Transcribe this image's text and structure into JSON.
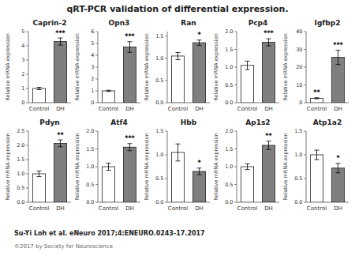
{
  "title": "qRT-PCR validation of differential expression.",
  "subtitle": "Su-Yi Loh et al. eNeuro 2017;4:ENEURO.0243-17.2017",
  "annotations": [
    "©2017 by Society for Neuroscience"
  ],
  "chart_data": [
    {
      "type": "bar",
      "title": "Caprin-2",
      "ylabel": "Relative mRNA expression",
      "categories": [
        "Control",
        "DH"
      ],
      "values": [
        1.0,
        4.3
      ],
      "errors": [
        0.08,
        0.25
      ],
      "colors": [
        "#ffffff",
        "#7f7f7f"
      ],
      "significance": [
        null,
        "***"
      ],
      "ylim": [
        0,
        5
      ],
      "yticks": [
        0,
        1,
        2,
        3,
        4,
        5
      ],
      "grid": false
    },
    {
      "type": "bar",
      "title": "Opn3",
      "ylabel": "Relative mRNA expression",
      "categories": [
        "Control",
        "DH"
      ],
      "values": [
        1.0,
        4.7
      ],
      "errors": [
        0.05,
        0.45
      ],
      "colors": [
        "#ffffff",
        "#7f7f7f"
      ],
      "significance": [
        null,
        "***"
      ],
      "ylim": [
        0,
        6
      ],
      "yticks": [
        0,
        1,
        2,
        3,
        4,
        5,
        6
      ],
      "grid": false
    },
    {
      "type": "bar",
      "title": "Ran",
      "ylabel": "Relative mRNA expression",
      "categories": [
        "Control",
        "DH"
      ],
      "values": [
        1.05,
        1.35
      ],
      "errors": [
        0.08,
        0.06
      ],
      "colors": [
        "#ffffff",
        "#7f7f7f"
      ],
      "significance": [
        null,
        "*"
      ],
      "ylim": [
        0.0,
        1.6
      ],
      "yticks": [
        {
          "value": 0.0,
          "label": "0.0"
        },
        0.5,
        {
          "value": 1.0,
          "label": "1.0"
        },
        1.5
      ],
      "grid": false
    },
    {
      "type": "bar",
      "title": "Pcp4",
      "ylabel": "Relative mRNA expression",
      "categories": [
        "Control",
        "DH"
      ],
      "values": [
        1.05,
        1.7
      ],
      "errors": [
        0.12,
        0.1
      ],
      "colors": [
        "#ffffff",
        "#7f7f7f"
      ],
      "significance": [
        null,
        "***"
      ],
      "ylim": [
        0.0,
        2.0
      ],
      "yticks": [
        {
          "value": 0.0,
          "label": "0.0"
        },
        0.5,
        {
          "value": 1.0,
          "label": "1.0"
        },
        1.5,
        {
          "value": 2.0,
          "label": "2.0"
        }
      ],
      "grid": false
    },
    {
      "type": "bar",
      "title": "Igfbp2",
      "ylabel": "Relative mRNA expression",
      "categories": [
        "Control",
        "DH"
      ],
      "values": [
        2.5,
        25.5
      ],
      "errors": [
        0.3,
        4.0
      ],
      "colors": [
        "#ffffff",
        "#7f7f7f"
      ],
      "significance": [
        "**",
        "***"
      ],
      "ylim": [
        0,
        40
      ],
      "yticks": [
        0,
        10,
        20,
        30,
        40
      ],
      "grid": false
    },
    {
      "type": "bar",
      "title": "Pdyn",
      "ylabel": "Relative mRNA expression",
      "categories": [
        "Control",
        "DH"
      ],
      "values": [
        1.0,
        2.07
      ],
      "errors": [
        0.1,
        0.12
      ],
      "colors": [
        "#ffffff",
        "#7f7f7f"
      ],
      "significance": [
        null,
        "**"
      ],
      "ylim": [
        0.0,
        2.5
      ],
      "yticks": [
        {
          "value": 0.0,
          "label": "0.0"
        },
        0.5,
        {
          "value": 1.0,
          "label": "1.0"
        },
        1.5,
        {
          "value": 2.0,
          "label": "2.0"
        },
        2.5
      ],
      "grid": false
    },
    {
      "type": "bar",
      "title": "Atf4",
      "ylabel": "Relative mRNA expression",
      "categories": [
        "Control",
        "DH"
      ],
      "values": [
        1.0,
        1.55
      ],
      "errors": [
        0.1,
        0.1
      ],
      "colors": [
        "#ffffff",
        "#7f7f7f"
      ],
      "significance": [
        null,
        "***"
      ],
      "ylim": [
        0.0,
        2.0
      ],
      "yticks": [
        {
          "value": 0.0,
          "label": "0.0"
        },
        0.5,
        {
          "value": 1.0,
          "label": "1.0"
        },
        1.5,
        {
          "value": 2.0,
          "label": "2.0"
        }
      ],
      "grid": false
    },
    {
      "type": "bar",
      "title": "Hbb",
      "ylabel": "Relative mRNA expression",
      "categories": [
        "Control",
        "DH"
      ],
      "values": [
        1.05,
        0.65
      ],
      "errors": [
        0.18,
        0.07
      ],
      "colors": [
        "#ffffff",
        "#7f7f7f"
      ],
      "significance": [
        null,
        "*"
      ],
      "ylim": [
        0.0,
        1.5
      ],
      "yticks": [
        {
          "value": 0.0,
          "label": "0.0"
        },
        0.5,
        {
          "value": 1.0,
          "label": "1.0"
        },
        1.5
      ],
      "grid": false
    },
    {
      "type": "bar",
      "title": "Ap1s2",
      "ylabel": "Relative mRNA expression",
      "categories": [
        "Control",
        "DH"
      ],
      "values": [
        1.0,
        1.6
      ],
      "errors": [
        0.08,
        0.12
      ],
      "colors": [
        "#ffffff",
        "#7f7f7f"
      ],
      "significance": [
        null,
        "**"
      ],
      "ylim": [
        0.0,
        2.0
      ],
      "yticks": [
        {
          "value": 0.0,
          "label": "0.0"
        },
        0.5,
        {
          "value": 1.0,
          "label": "1.0"
        },
        1.5,
        {
          "value": 2.0,
          "label": "2.0"
        }
      ],
      "grid": false
    },
    {
      "type": "bar",
      "title": "Atp1a2",
      "ylabel": "Relative mRNA expression",
      "categories": [
        "Control",
        "DH"
      ],
      "values": [
        1.0,
        0.72
      ],
      "errors": [
        0.1,
        0.1
      ],
      "colors": [
        "#ffffff",
        "#7f7f7f"
      ],
      "significance": [
        null,
        "*"
      ],
      "ylim": [
        0.0,
        1.5
      ],
      "yticks": [
        {
          "value": 0.0,
          "label": "0.0"
        },
        0.5,
        {
          "value": 1.0,
          "label": "1.0"
        },
        1.5
      ],
      "grid": false
    }
  ]
}
